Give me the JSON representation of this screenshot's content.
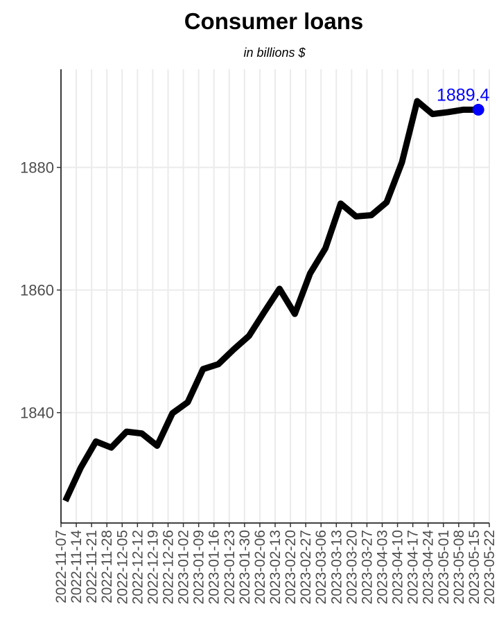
{
  "chart_data": {
    "type": "line",
    "title": "Consumer loans",
    "subtitle": "in billions $",
    "xlabel": "",
    "ylabel": "",
    "x_axis": "date",
    "xlim": [
      "2022-11-07",
      "2023-05-22"
    ],
    "ylim": [
      1822,
      1896
    ],
    "yticks": [
      1840,
      1860,
      1880
    ],
    "xticks": [
      "2022-11-07",
      "2022-11-14",
      "2022-11-21",
      "2022-11-28",
      "2022-12-05",
      "2022-12-12",
      "2022-12-19",
      "2022-12-26",
      "2023-01-02",
      "2023-01-09",
      "2023-01-16",
      "2023-01-23",
      "2023-01-30",
      "2023-02-06",
      "2023-02-13",
      "2023-02-20",
      "2023-02-27",
      "2023-03-06",
      "2023-03-13",
      "2023-03-20",
      "2023-03-27",
      "2023-04-03",
      "2023-04-10",
      "2023-04-17",
      "2023-04-24",
      "2023-05-01",
      "2023-05-08",
      "2023-05-15",
      "2023-05-22"
    ],
    "grid": "vertical at every tick; horizontal at y ticks",
    "series": [
      {
        "color": "#000000",
        "x": [
          "2022-11-09",
          "2022-11-16",
          "2022-11-23",
          "2022-11-30",
          "2022-12-07",
          "2022-12-14",
          "2022-12-21",
          "2022-12-28",
          "2023-01-04",
          "2023-01-11",
          "2023-01-18",
          "2023-01-25",
          "2023-02-01",
          "2023-02-08",
          "2023-02-15",
          "2023-02-22",
          "2023-03-01",
          "2023-03-08",
          "2023-03-15",
          "2023-03-22",
          "2023-03-29",
          "2023-04-05",
          "2023-04-12",
          "2023-04-19",
          "2023-04-26",
          "2023-05-03",
          "2023-05-10",
          "2023-05-17"
        ],
        "y": [
          1825.6,
          1831.0,
          1835.3,
          1834.3,
          1836.9,
          1836.6,
          1834.6,
          1839.9,
          1841.7,
          1847.1,
          1847.9,
          1850.3,
          1852.5,
          1856.4,
          1860.2,
          1856.1,
          1862.7,
          1866.8,
          1874.1,
          1872.0,
          1872.2,
          1874.3,
          1880.8,
          1890.8,
          1888.7,
          1889.0,
          1889.4,
          1889.4
        ]
      }
    ],
    "highlight": {
      "x": "2023-05-17",
      "y": 1889.4,
      "label": "1889.4",
      "color": "#0000ff"
    }
  }
}
